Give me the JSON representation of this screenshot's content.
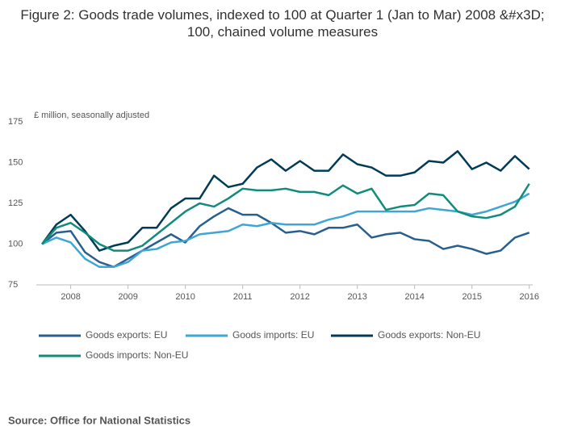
{
  "chart_data": {
    "type": "line",
    "title": "Figure 2: Goods trade volumes, indexed to 100 at Quarter 1 (Jan to Mar) 2008 &#x3D; 100, chained volume measures",
    "y_label": "£ million, seasonally adjusted",
    "source": "Source: Office for National Statistics",
    "x": [
      2007.5,
      2007.75,
      2008,
      2008.25,
      2008.5,
      2008.75,
      2009,
      2009.25,
      2009.5,
      2009.75,
      2010,
      2010.25,
      2010.5,
      2010.75,
      2011,
      2011.25,
      2011.5,
      2011.75,
      2012,
      2012.25,
      2012.5,
      2012.75,
      2013,
      2013.25,
      2013.5,
      2013.75,
      2014,
      2014.25,
      2014.5,
      2014.75,
      2015,
      2015.25,
      2015.5,
      2015.75,
      2016
    ],
    "xlim": [
      2007.4,
      2016.06
    ],
    "xticks": [
      2008,
      2009,
      2010,
      2011,
      2012,
      2013,
      2014,
      2015,
      2016
    ],
    "ylim": [
      75,
      175
    ],
    "yticks": [
      75,
      100,
      125,
      150,
      175
    ],
    "series": [
      {
        "name": "Goods exports: EU",
        "color": "#27608f",
        "values": [
          100,
          107,
          108,
          95,
          89,
          86,
          91,
          96,
          101,
          106,
          101,
          111,
          117,
          122,
          118,
          118,
          113,
          107,
          108,
          106,
          110,
          110,
          112,
          104,
          106,
          107,
          103,
          102,
          97,
          99,
          97,
          94,
          96,
          104,
          107
        ]
      },
      {
        "name": "Goods imports: EU",
        "color": "#3ea6d4",
        "values": [
          100,
          104,
          101,
          91,
          86,
          86,
          89,
          96,
          97,
          101,
          102,
          106,
          107,
          108,
          112,
          111,
          113,
          112,
          112,
          112,
          115,
          117,
          120,
          120,
          120,
          120,
          120,
          122,
          121,
          120,
          118,
          120,
          123,
          126,
          131
        ]
      },
      {
        "name": "Goods exports: Non-EU",
        "color": "#003c57",
        "values": [
          100,
          112,
          118,
          108,
          96,
          99,
          101,
          110,
          110,
          122,
          128,
          128,
          142,
          135,
          137,
          147,
          152,
          145,
          151,
          145,
          145,
          155,
          149,
          147,
          142,
          142,
          144,
          151,
          150,
          157,
          146,
          150,
          145,
          154,
          146
        ]
      },
      {
        "name": "Goods imports: Non-EU",
        "color": "#118c7b",
        "values": [
          100,
          110,
          113,
          107,
          100,
          96,
          96,
          99,
          106,
          113,
          120,
          125,
          123,
          128,
          134,
          133,
          133,
          134,
          132,
          132,
          130,
          136,
          131,
          134,
          121,
          123,
          124,
          131,
          130,
          120,
          117,
          116,
          118,
          123,
          137
        ]
      }
    ]
  }
}
